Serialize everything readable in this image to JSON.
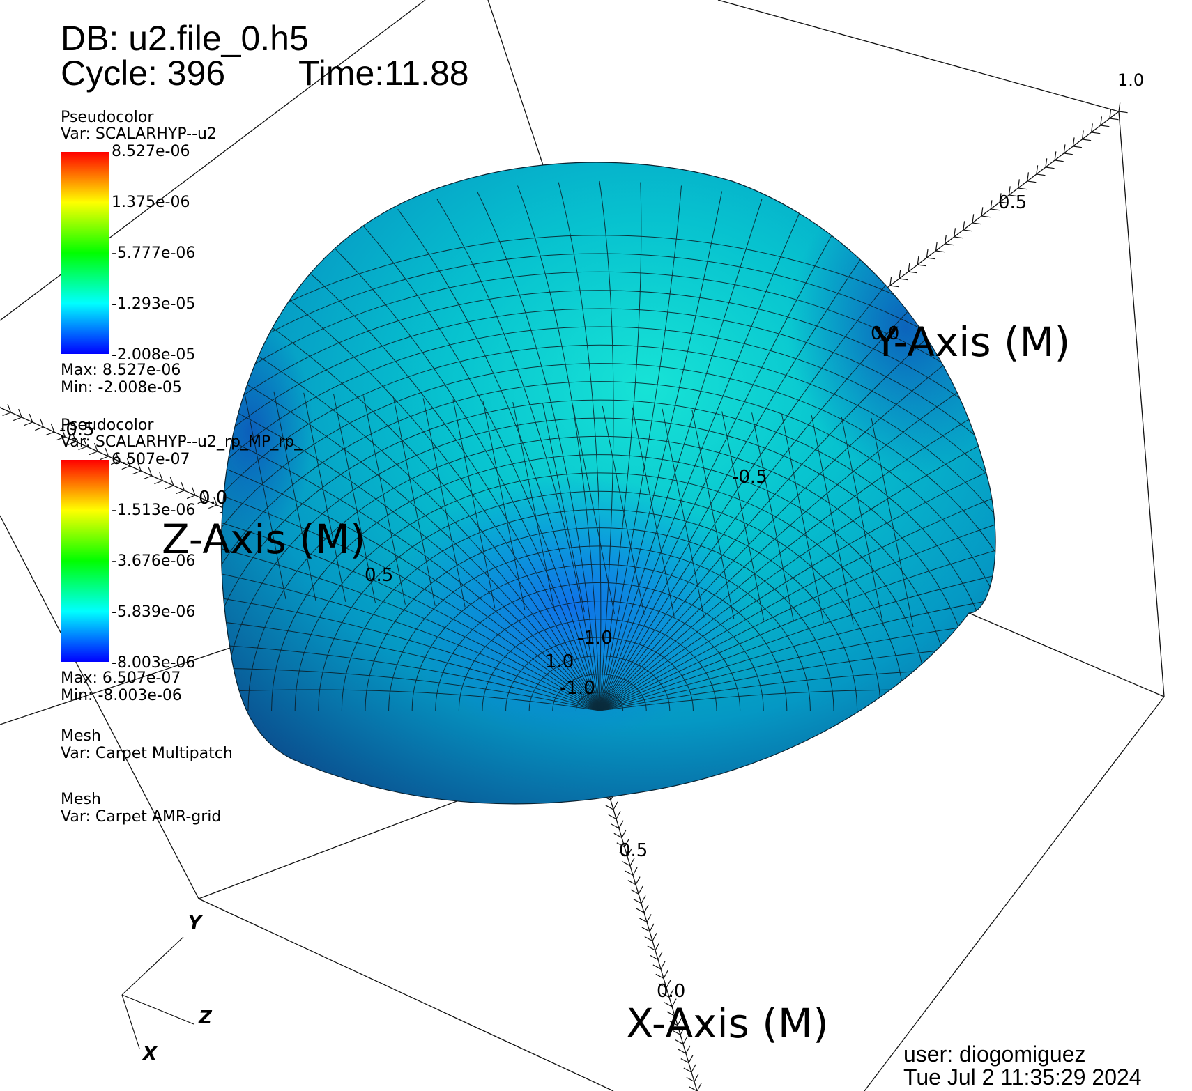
{
  "header": {
    "db": "DB: u2.file_0.h5",
    "cycle": "Cycle: 396",
    "time": "Time:11.88"
  },
  "legends": [
    {
      "plot_type": "Pseudocolor",
      "var": "Var: SCALARHYP--u2",
      "ticks": [
        "8.527e-06",
        "1.375e-06",
        "-5.777e-06",
        "-1.293e-05",
        "-2.008e-05"
      ],
      "max": "Max:  8.527e-06",
      "min": "Min: -2.008e-05"
    },
    {
      "plot_type": "Pseudocolor",
      "var": "Var: SCALARHYP--u2_rp_MP_rp_",
      "ticks": [
        "6.507e-07",
        "-1.513e-06",
        "-3.676e-06",
        "-5.839e-06",
        "-8.003e-06"
      ],
      "max": "Max:  6.507e-07",
      "min": "Min: -8.003e-06"
    }
  ],
  "mesh_legends": [
    {
      "plot_type": "Mesh",
      "var": "Var: Carpet Multipatch"
    },
    {
      "plot_type": "Mesh",
      "var": "Var: Carpet AMR-grid"
    }
  ],
  "axes": {
    "x_title": "X-Axis (M)",
    "y_title": "Y-Axis (M)",
    "z_title": "Z-Axis (M)",
    "tick_labels": {
      "y_top": "1.0",
      "y_mid": "0.5",
      "y_zero": "0.0",
      "y_neg_half": "-0.5",
      "z_neg_half": "-0.5",
      "z_zero": "0.0",
      "z_half": "0.5",
      "z_one": "1.0",
      "y_neg_one": "-1.0",
      "x_neg_one": "-1.0",
      "x_half": "0.5",
      "x_zero": "0.0"
    }
  },
  "triad": {
    "x": "X",
    "y": "Y",
    "z": "Z"
  },
  "footer": {
    "user": "user: diogomiguez",
    "date": "Tue Jul  2 11:35:29 2024"
  },
  "colors": {
    "sphere_core": "#00b3c8",
    "sphere_dark": "#0a5fa8",
    "sphere_highlight": "#18e6d8",
    "mesh_line": "#0b1b24"
  }
}
